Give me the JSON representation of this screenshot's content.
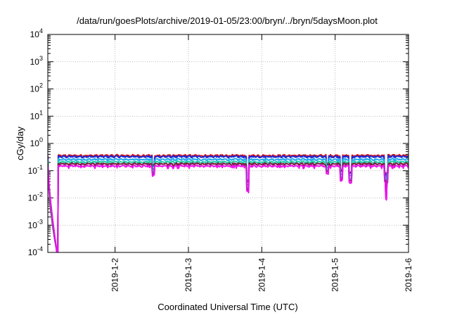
{
  "chart_data": {
    "type": "line",
    "title": "/data/run/goesPlots/archive/2019-01-05/23:00/bryn/../bryn/5daysMoon.plot",
    "xlabel": "Coordinated Universal Time (UTC)",
    "ylabel": "cGy/day",
    "yscale": "log",
    "ylim": [
      0.0001,
      10000
    ],
    "yticks": [
      {
        "value": 0.0001,
        "base": "10",
        "exp": "-4"
      },
      {
        "value": 0.001,
        "base": "10",
        "exp": "-3"
      },
      {
        "value": 0.01,
        "base": "10",
        "exp": "-2"
      },
      {
        "value": 0.1,
        "base": "10",
        "exp": "-1"
      },
      {
        "value": 1,
        "base": "10",
        "exp": "0"
      },
      {
        "value": 10,
        "base": "10",
        "exp": "1"
      },
      {
        "value": 100,
        "base": "10",
        "exp": "2"
      },
      {
        "value": 1000,
        "base": "10",
        "exp": "3"
      },
      {
        "value": 10000,
        "base": "10",
        "exp": "4"
      }
    ],
    "xlim": [
      "2019-01-01T02:00",
      "2019-01-06T00:00"
    ],
    "xticks": [
      {
        "value": "2019-01-02T00:00",
        "label": "2019-1-2"
      },
      {
        "value": "2019-01-03T00:00",
        "label": "2019-1-3"
      },
      {
        "value": "2019-01-04T00:00",
        "label": "2019-1-4"
      },
      {
        "value": "2019-01-05T00:00",
        "label": "2019-1-5"
      },
      {
        "value": "2019-01-06T00:00",
        "label": "2019-1-6"
      }
    ],
    "grid": true,
    "legend": "none",
    "series": [
      {
        "color": "#dd1111",
        "base": 0.36
      },
      {
        "color": "#1e2bd6",
        "base": 0.33
      },
      {
        "color": "#22aaee",
        "base": 0.26
      },
      {
        "color": "#22ccaa",
        "base": 0.21
      },
      {
        "color": "#7a1f3d",
        "base": 0.18
      },
      {
        "color": "#ee11ee",
        "base": 0.15
      }
    ],
    "events": [
      {
        "type": "drop",
        "start": "2019-01-01T02:00",
        "end": "2019-01-01T05:00",
        "to": 0.0001
      },
      {
        "type": "dip",
        "at": "2019-01-02T12:30",
        "factor": 0.45
      },
      {
        "type": "dip",
        "at": "2019-01-03T19:20",
        "factor": 0.12
      },
      {
        "type": "dip",
        "at": "2019-01-04T21:30",
        "factor": 0.5
      },
      {
        "type": "dip",
        "at": "2019-01-05T02:00",
        "factor": 0.3
      },
      {
        "type": "dip",
        "at": "2019-01-05T05:00",
        "factor": 0.25
      },
      {
        "type": "dip",
        "at": "2019-01-05T16:30",
        "factor": 0.25
      },
      {
        "type": "dip",
        "at": "2019-01-05T16:50",
        "factor": 0.25
      }
    ]
  }
}
